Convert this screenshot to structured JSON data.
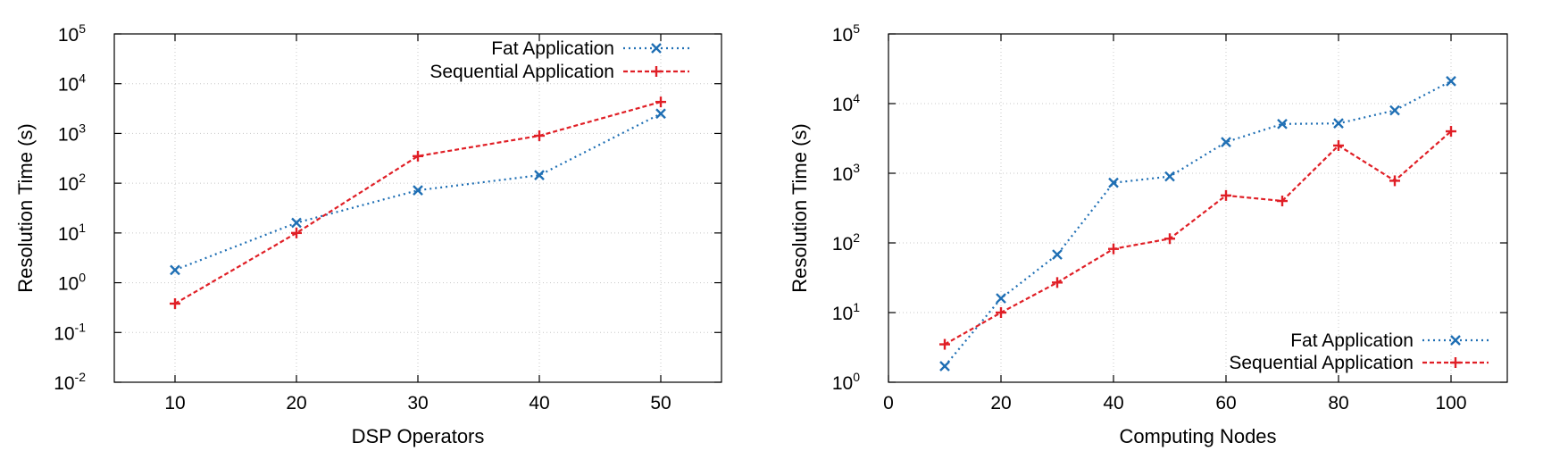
{
  "colors": {
    "fat": "#1f6fb4",
    "sequential": "#e01f26"
  },
  "chart_data": [
    {
      "type": "line",
      "xlabel": "DSP Operators",
      "ylabel": "Resolution Time (s)",
      "yscale": "log",
      "xlim": [
        5,
        55
      ],
      "ylim": [
        0.01,
        100000
      ],
      "xticks": [
        "10",
        "20",
        "30",
        "40",
        "50"
      ],
      "yticks": [
        {
          "base": "10",
          "exp": "-2"
        },
        {
          "base": "10",
          "exp": "-1"
        },
        {
          "base": "10",
          "exp": "0"
        },
        {
          "base": "10",
          "exp": "1"
        },
        {
          "base": "10",
          "exp": "2"
        },
        {
          "base": "10",
          "exp": "3"
        },
        {
          "base": "10",
          "exp": "4"
        },
        {
          "base": "10",
          "exp": "5"
        }
      ],
      "grid": true,
      "legend_position": "top-right",
      "series": [
        {
          "name": "Fat Application",
          "x": [
            10,
            20,
            30,
            40,
            50
          ],
          "y": [
            1.8,
            16,
            72,
            145,
            2500
          ]
        },
        {
          "name": "Sequential Application",
          "x": [
            10,
            20,
            30,
            40,
            50
          ],
          "y": [
            0.38,
            10,
            350,
            900,
            4300
          ]
        }
      ]
    },
    {
      "type": "line",
      "xlabel": "Computing Nodes",
      "ylabel": "Resolution Time (s)",
      "yscale": "log",
      "xlim": [
        0,
        110
      ],
      "ylim": [
        1,
        100000
      ],
      "xticks": [
        "0",
        "20",
        "40",
        "60",
        "80",
        "100"
      ],
      "yticks": [
        {
          "base": "10",
          "exp": "0"
        },
        {
          "base": "10",
          "exp": "1"
        },
        {
          "base": "10",
          "exp": "2"
        },
        {
          "base": "10",
          "exp": "3"
        },
        {
          "base": "10",
          "exp": "4"
        },
        {
          "base": "10",
          "exp": "5"
        }
      ],
      "grid": true,
      "legend_position": "bottom-right",
      "series": [
        {
          "name": "Fat Application",
          "x": [
            10,
            20,
            30,
            40,
            50,
            60,
            70,
            80,
            90,
            100
          ],
          "y": [
            1.7,
            16,
            68,
            730,
            900,
            2800,
            5100,
            5200,
            8000,
            21000
          ]
        },
        {
          "name": "Sequential Application",
          "x": [
            10,
            20,
            30,
            40,
            50,
            60,
            70,
            80,
            90,
            100
          ],
          "y": [
            3.5,
            10,
            27,
            82,
            115,
            480,
            400,
            2500,
            780,
            4000
          ]
        }
      ]
    }
  ]
}
